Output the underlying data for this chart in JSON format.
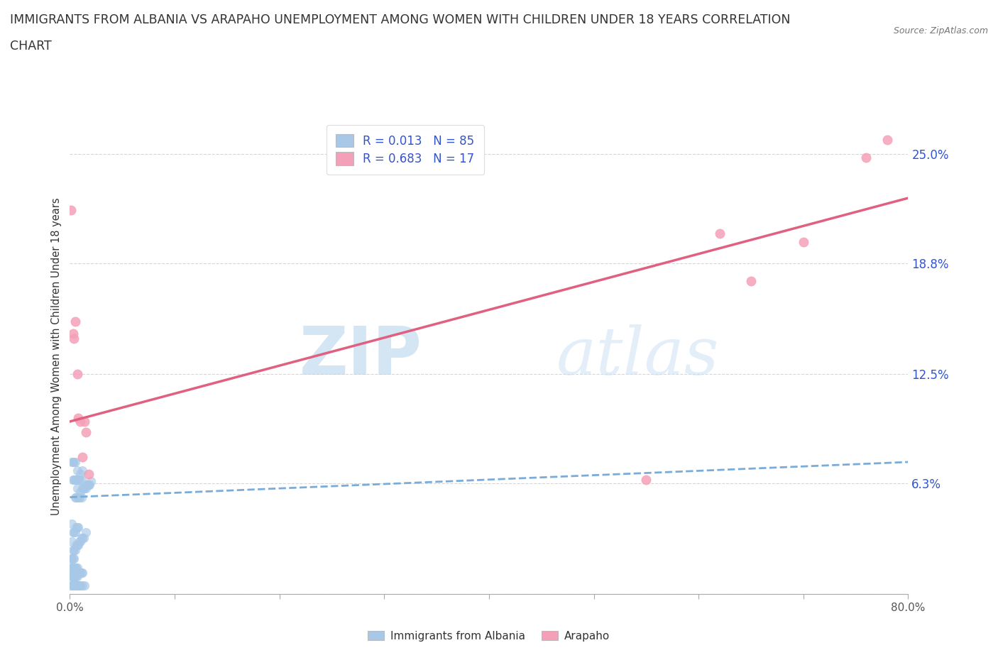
{
  "title_line1": "IMMIGRANTS FROM ALBANIA VS ARAPAHO UNEMPLOYMENT AMONG WOMEN WITH CHILDREN UNDER 18 YEARS CORRELATION",
  "title_line2": "CHART",
  "source": "Source: ZipAtlas.com",
  "ylabel": "Unemployment Among Women with Children Under 18 years",
  "background_color": "#ffffff",
  "watermark_zip": "ZIP",
  "watermark_atlas": "atlas",
  "xlim": [
    0.0,
    0.8
  ],
  "ylim": [
    0.0,
    0.27
  ],
  "ytick_vals": [
    0.0,
    0.063,
    0.125,
    0.188,
    0.25
  ],
  "ytick_labels": [
    "",
    "6.3%",
    "12.5%",
    "18.8%",
    "25.0%"
  ],
  "xtick_vals": [
    0.0,
    0.1,
    0.2,
    0.3,
    0.4,
    0.5,
    0.6,
    0.7,
    0.8
  ],
  "xtick_labels": [
    "0.0%",
    "",
    "",
    "",
    "",
    "",
    "",
    "",
    "80.0%"
  ],
  "r_albania": 0.013,
  "n_albania": 85,
  "r_arapaho": 0.683,
  "n_arapaho": 17,
  "albania_color": "#a8c8e8",
  "arapaho_color": "#f4a0b8",
  "albania_line_color": "#7aacda",
  "arapaho_line_color": "#e06080",
  "legend_text_color": "#3355cc",
  "grid_color": "#cccccc",
  "albania_scatter_x": [
    0.002,
    0.003,
    0.003,
    0.004,
    0.004,
    0.005,
    0.005,
    0.005,
    0.006,
    0.006,
    0.007,
    0.007,
    0.008,
    0.008,
    0.009,
    0.009,
    0.01,
    0.01,
    0.011,
    0.011,
    0.012,
    0.012,
    0.013,
    0.014,
    0.015,
    0.016,
    0.017,
    0.018,
    0.019,
    0.02,
    0.002,
    0.002,
    0.003,
    0.003,
    0.004,
    0.004,
    0.005,
    0.005,
    0.006,
    0.006,
    0.007,
    0.007,
    0.008,
    0.008,
    0.009,
    0.01,
    0.011,
    0.012,
    0.013,
    0.015,
    0.001,
    0.001,
    0.001,
    0.002,
    0.002,
    0.002,
    0.003,
    0.003,
    0.003,
    0.004,
    0.004,
    0.004,
    0.005,
    0.005,
    0.006,
    0.006,
    0.007,
    0.007,
    0.008,
    0.009,
    0.01,
    0.011,
    0.012,
    0.001,
    0.002,
    0.003,
    0.004,
    0.005,
    0.006,
    0.007,
    0.008,
    0.009,
    0.01,
    0.012,
    0.014
  ],
  "albania_scatter_y": [
    0.075,
    0.065,
    0.075,
    0.065,
    0.075,
    0.055,
    0.065,
    0.075,
    0.055,
    0.065,
    0.06,
    0.07,
    0.055,
    0.065,
    0.055,
    0.065,
    0.058,
    0.068,
    0.055,
    0.065,
    0.06,
    0.07,
    0.06,
    0.06,
    0.06,
    0.062,
    0.062,
    0.062,
    0.062,
    0.064,
    0.03,
    0.04,
    0.025,
    0.035,
    0.025,
    0.035,
    0.025,
    0.035,
    0.028,
    0.038,
    0.028,
    0.038,
    0.028,
    0.038,
    0.03,
    0.03,
    0.032,
    0.032,
    0.032,
    0.035,
    0.01,
    0.015,
    0.02,
    0.01,
    0.015,
    0.02,
    0.01,
    0.015,
    0.02,
    0.01,
    0.015,
    0.02,
    0.01,
    0.015,
    0.01,
    0.015,
    0.01,
    0.015,
    0.012,
    0.012,
    0.012,
    0.012,
    0.012,
    0.005,
    0.005,
    0.005,
    0.005,
    0.005,
    0.005,
    0.005,
    0.005,
    0.005,
    0.005,
    0.005,
    0.005
  ],
  "arapaho_scatter_x": [
    0.001,
    0.003,
    0.004,
    0.005,
    0.007,
    0.008,
    0.01,
    0.012,
    0.014,
    0.015,
    0.018,
    0.55,
    0.62,
    0.65,
    0.7,
    0.76,
    0.78
  ],
  "arapaho_scatter_y": [
    0.218,
    0.148,
    0.145,
    0.155,
    0.125,
    0.1,
    0.098,
    0.078,
    0.098,
    0.092,
    0.068,
    0.065,
    0.205,
    0.178,
    0.2,
    0.248,
    0.258
  ],
  "albania_trendline_x": [
    0.0,
    0.8
  ],
  "albania_trendline_y": [
    0.055,
    0.075
  ],
  "arapaho_trendline_x": [
    0.0,
    0.8
  ],
  "arapaho_trendline_y": [
    0.098,
    0.225
  ]
}
